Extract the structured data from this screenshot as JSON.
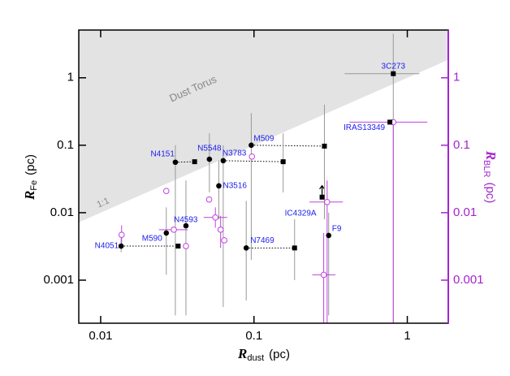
{
  "chart_data": {
    "type": "scatter",
    "log_x": true,
    "log_y": true,
    "x_label": {
      "symbol": "R",
      "sub": "dust",
      "unit": "(pc)"
    },
    "y_label": {
      "symbol": "R",
      "sub": "Fe",
      "unit": "(pc)"
    },
    "y2_label": {
      "symbol": "R",
      "sub": "BLR",
      "unit": "(pc)",
      "color": "#a424d0"
    },
    "annotations": [
      {
        "text": "Dust Torus"
      },
      {
        "text": "1:1"
      }
    ],
    "torus_color": "#e3e3e3",
    "xlim": [
      0.0072,
      1.85
    ],
    "xticks": [
      0.01,
      0.1,
      1
    ],
    "ylim": [
      0.00023,
      5.1
    ],
    "yticks": [
      0.001,
      0.01,
      0.1,
      1
    ],
    "y2lim": [
      0.00023,
      5.1
    ],
    "y2ticks": [
      0.001,
      0.01,
      0.1,
      1
    ],
    "circles": {
      "color": "#000000",
      "label_color": "#1c1cf0",
      "labels": [
        "N4051",
        "M590",
        "N4593",
        "N4151",
        "N5548",
        "N3783",
        "N3516",
        "N7469",
        "M509",
        "F9"
      ],
      "x": [
        0.0136,
        0.0268,
        0.036,
        0.0307,
        0.0512,
        0.063,
        0.059,
        0.089,
        0.096,
        0.307
      ],
      "y": [
        0.0032,
        0.005,
        0.0064,
        0.056,
        0.062,
        0.059,
        0.025,
        0.003,
        0.1,
        0.0046
      ],
      "ylo": [
        0.0026,
        0.0012,
        0.0003,
        0.0003,
        0.02,
        0.0004,
        0.008,
        0.0005,
        0.002,
        0.0003
      ],
      "yhi": [
        0.0042,
        0.012,
        0.03,
        0.1,
        0.15,
        0.1,
        0.06,
        0.015,
        0.3,
        0.01
      ]
    },
    "squares": {
      "color": "#000000",
      "labels": [
        null,
        null,
        null,
        null,
        null,
        "IC4329A",
        "IRAS13349",
        "3C273"
      ],
      "x": [
        0.032,
        0.041,
        0.155,
        0.288,
        0.184,
        0.278,
        0.77,
        0.81
      ],
      "y": [
        0.0032,
        0.057,
        0.057,
        0.097,
        0.003,
        0.017,
        0.22,
        1.15
      ],
      "xlo": [
        null,
        null,
        null,
        null,
        null,
        null,
        null,
        0.39
      ],
      "xhi": [
        null,
        null,
        null,
        null,
        null,
        null,
        null,
        1.2
      ],
      "ylo": [
        null,
        null,
        0.02,
        0.008,
        0.001,
        null,
        null,
        0.0002
      ],
      "yhi": [
        null,
        null,
        0.15,
        0.4,
        0.008,
        null,
        null,
        4.5
      ]
    },
    "blr": {
      "axis": "y2",
      "color": "#c040e0",
      "x": [
        0.0137,
        0.0268,
        0.03,
        0.036,
        0.051,
        0.056,
        0.0606,
        0.064,
        0.097,
        0.285,
        0.3,
        0.81
      ],
      "y": [
        0.0047,
        0.021,
        0.0056,
        0.0032,
        0.0157,
        0.0085,
        0.0056,
        0.0039,
        0.068,
        0.0012,
        0.0144,
        0.22
      ],
      "xlo": [
        null,
        null,
        0.024,
        null,
        null,
        0.047,
        null,
        null,
        null,
        0.24,
        0.23,
        0.42
      ],
      "xhi": [
        null,
        null,
        0.037,
        null,
        null,
        0.067,
        null,
        null,
        null,
        0.34,
        0.38,
        1.35
      ],
      "ylo": [
        0.0035,
        null,
        null,
        null,
        null,
        0.006,
        0.003,
        null,
        null,
        0.0002,
        0.0002,
        0.0002
      ],
      "yhi": [
        0.0065,
        null,
        null,
        null,
        null,
        0.012,
        0.009,
        null,
        null,
        0.005,
        0.03,
        null
      ]
    }
  }
}
